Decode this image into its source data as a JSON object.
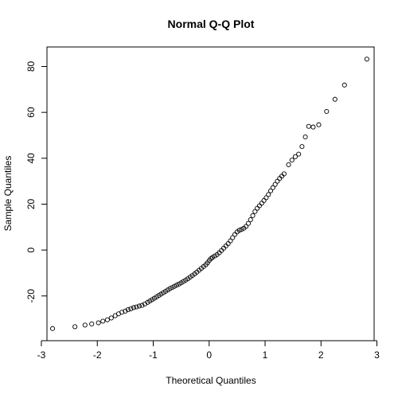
{
  "chart_data": {
    "type": "scatter",
    "title": "Normal Q-Q Plot",
    "xlabel": "Theoretical Quantiles",
    "ylabel": "Sample Quantiles",
    "xlim": [
      -2.9,
      2.95
    ],
    "ylim": [
      -39.5,
      88.5
    ],
    "xticks": [
      -3,
      -2,
      -1,
      0,
      1,
      2,
      3
    ],
    "yticks": [
      -20,
      0,
      20,
      40,
      60,
      80
    ],
    "grid": false,
    "marker": "open-circle",
    "point_color": "#000000",
    "points": [
      [
        -2.8,
        -34.2
      ],
      [
        -2.4,
        -33.4
      ],
      [
        -2.22,
        -32.7
      ],
      [
        -2.1,
        -32.2
      ],
      [
        -1.98,
        -31.7
      ],
      [
        -1.9,
        -31.0
      ],
      [
        -1.82,
        -30.4
      ],
      [
        -1.75,
        -29.6
      ],
      [
        -1.68,
        -28.6
      ],
      [
        -1.62,
        -27.8
      ],
      [
        -1.56,
        -27.1
      ],
      [
        -1.5,
        -26.6
      ],
      [
        -1.45,
        -26.0
      ],
      [
        -1.4,
        -25.6
      ],
      [
        -1.35,
        -25.1
      ],
      [
        -1.3,
        -24.8
      ],
      [
        -1.25,
        -24.4
      ],
      [
        -1.2,
        -24.1
      ],
      [
        -1.15,
        -23.5
      ],
      [
        -1.1,
        -22.8
      ],
      [
        -1.06,
        -22.2
      ],
      [
        -1.02,
        -21.6
      ],
      [
        -0.98,
        -21.0
      ],
      [
        -0.94,
        -20.4
      ],
      [
        -0.9,
        -19.8
      ],
      [
        -0.86,
        -19.2
      ],
      [
        -0.82,
        -18.6
      ],
      [
        -0.78,
        -18.0
      ],
      [
        -0.74,
        -17.4
      ],
      [
        -0.7,
        -16.8
      ],
      [
        -0.66,
        -16.3
      ],
      [
        -0.62,
        -15.8
      ],
      [
        -0.58,
        -15.3
      ],
      [
        -0.54,
        -14.8
      ],
      [
        -0.5,
        -14.3
      ],
      [
        -0.46,
        -13.7
      ],
      [
        -0.42,
        -13.1
      ],
      [
        -0.38,
        -12.5
      ],
      [
        -0.34,
        -11.8
      ],
      [
        -0.3,
        -11.1
      ],
      [
        -0.26,
        -10.4
      ],
      [
        -0.22,
        -9.6
      ],
      [
        -0.18,
        -8.8
      ],
      [
        -0.14,
        -8.0
      ],
      [
        -0.1,
        -7.2
      ],
      [
        -0.06,
        -6.4
      ],
      [
        -0.03,
        -5.6
      ],
      [
        0.0,
        -4.6
      ],
      [
        0.03,
        -3.8
      ],
      [
        0.06,
        -3.2
      ],
      [
        0.1,
        -2.6
      ],
      [
        0.14,
        -2.0
      ],
      [
        0.18,
        -1.2
      ],
      [
        0.22,
        -0.2
      ],
      [
        0.26,
        0.8
      ],
      [
        0.3,
        1.8
      ],
      [
        0.34,
        2.8
      ],
      [
        0.38,
        4.0
      ],
      [
        0.42,
        5.4
      ],
      [
        0.46,
        6.8
      ],
      [
        0.5,
        7.9
      ],
      [
        0.54,
        8.6
      ],
      [
        0.58,
        9.0
      ],
      [
        0.62,
        9.5
      ],
      [
        0.66,
        10.3
      ],
      [
        0.7,
        11.6
      ],
      [
        0.74,
        13.2
      ],
      [
        0.78,
        15.0
      ],
      [
        0.82,
        16.8
      ],
      [
        0.86,
        18.2
      ],
      [
        0.9,
        19.3
      ],
      [
        0.94,
        20.4
      ],
      [
        0.98,
        21.6
      ],
      [
        1.02,
        22.8
      ],
      [
        1.06,
        24.2
      ],
      [
        1.1,
        25.8
      ],
      [
        1.14,
        27.2
      ],
      [
        1.18,
        28.6
      ],
      [
        1.22,
        30.0
      ],
      [
        1.26,
        31.2
      ],
      [
        1.3,
        32.2
      ],
      [
        1.34,
        33.2
      ],
      [
        1.42,
        37.2
      ],
      [
        1.48,
        39.2
      ],
      [
        1.54,
        40.7
      ],
      [
        1.6,
        41.8
      ],
      [
        1.66,
        45.1
      ],
      [
        1.72,
        49.3
      ],
      [
        1.78,
        53.9
      ],
      [
        1.86,
        53.6
      ],
      [
        1.96,
        54.6
      ],
      [
        2.1,
        60.4
      ],
      [
        2.25,
        65.7
      ],
      [
        2.42,
        71.9
      ],
      [
        2.82,
        83.2
      ]
    ]
  }
}
